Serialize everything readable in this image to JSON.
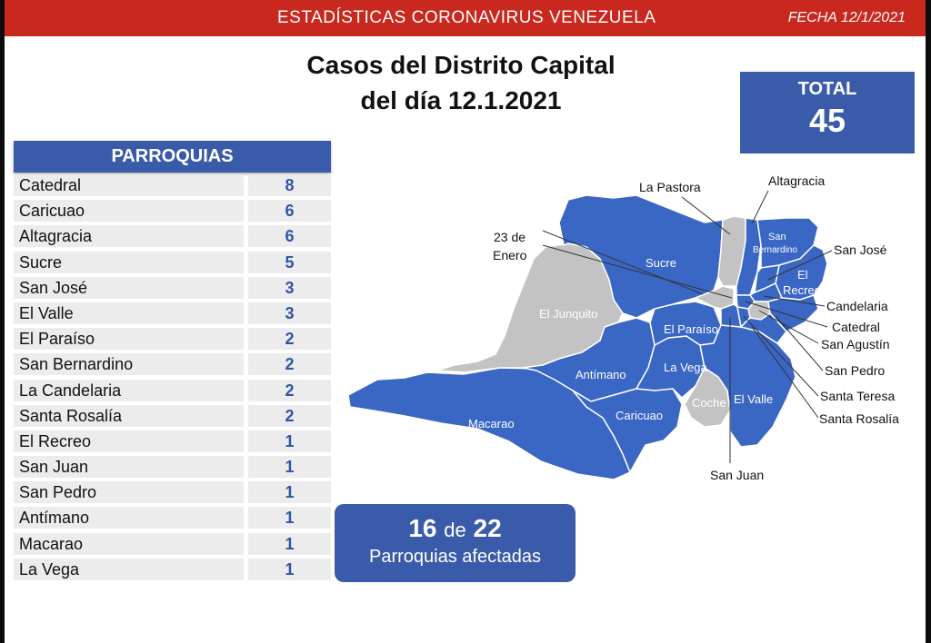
{
  "header": {
    "title": "ESTADÍSTICAS CORONAVIRUS VENEZUELA",
    "date": "FECHA 12/1/2021"
  },
  "heading": {
    "line1": "Casos del Distrito Capital",
    "line2": "del día 12.1.2021"
  },
  "total": {
    "label": "TOTAL",
    "value": "45"
  },
  "parroquias": {
    "header": "PARROQUIAS",
    "rows": [
      {
        "name": "Catedral",
        "cases": "8"
      },
      {
        "name": "Caricuao",
        "cases": "6"
      },
      {
        "name": "Altagracia",
        "cases": "6"
      },
      {
        "name": "Sucre",
        "cases": "5"
      },
      {
        "name": "San José",
        "cases": "3"
      },
      {
        "name": "El Valle",
        "cases": "3"
      },
      {
        "name": "El Paraíso",
        "cases": "2"
      },
      {
        "name": "San Bernardino",
        "cases": "2"
      },
      {
        "name": "La Candelaria",
        "cases": "2"
      },
      {
        "name": "Santa Rosalía",
        "cases": "2"
      },
      {
        "name": "El Recreo",
        "cases": "1"
      },
      {
        "name": "San Juan",
        "cases": "1"
      },
      {
        "name": "San Pedro",
        "cases": "1"
      },
      {
        "name": "Antímano",
        "cases": "1"
      },
      {
        "name": "Macarao",
        "cases": "1"
      },
      {
        "name": "La Vega",
        "cases": "1"
      }
    ]
  },
  "badge": {
    "affected": "16",
    "connector": "de",
    "total": "22",
    "caption": "Parroquias afectadas"
  },
  "map": {
    "colors": {
      "affected": "#3a66c4",
      "unaffected": "#c3c3c3",
      "border": "#ffffff"
    },
    "inner_labels": {
      "sucre": "Sucre",
      "el_junquito": "El Junquito",
      "el_paraiso": "El Paraíso",
      "antimano": "Antímano",
      "la_vega": "La Vega",
      "macarao": "Macarao",
      "caricuao": "Caricuao",
      "coche": "Coche",
      "el_valle": "El Valle",
      "san_bernardino_1": "San",
      "san_bernardino_2": "Bernardino",
      "el_recreo_1": "El",
      "el_recreo_2": "Recreo"
    },
    "callouts": {
      "la_pastora": "La Pastora",
      "altagracia": "Altagracia",
      "veintitres_1": "23 de",
      "veintitres_2": "Enero",
      "san_jose": "San José",
      "candelaria": "Candelaria",
      "catedral": "Catedral",
      "san_agustin": "San Agustín",
      "san_pedro": "San Pedro",
      "santa_teresa": "Santa Teresa",
      "santa_rosalia": "Santa Rosalía",
      "san_juan": "San Juan"
    }
  }
}
